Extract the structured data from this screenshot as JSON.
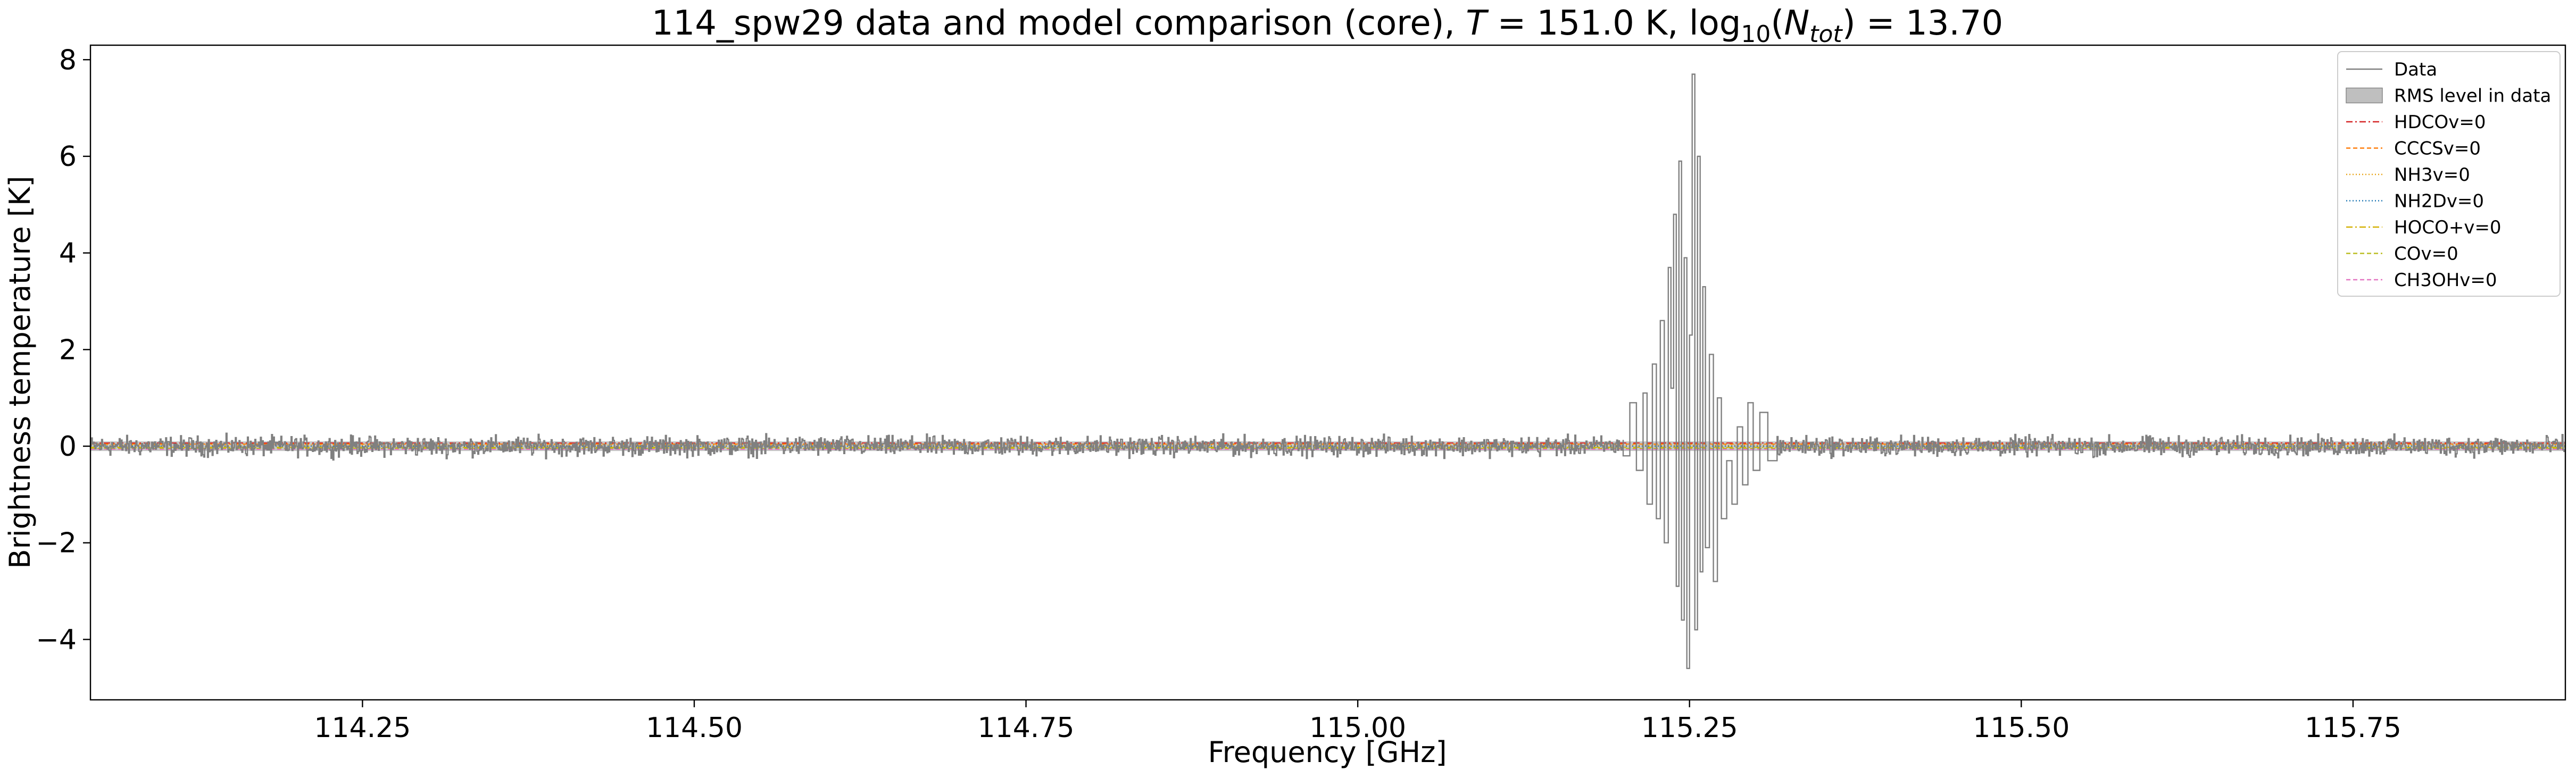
{
  "chart_data": {
    "type": "line",
    "title": {
      "prefix": "114_spw29 data and model comparison (core), ",
      "t_symbol": "T",
      "t_value": " = 151.0 K, log",
      "log_base": "10",
      "n_open": "(",
      "n_symbol": "N",
      "n_sub": "tot",
      "n_close": ") = 13.70"
    },
    "xlabel": "Frequency [GHz]",
    "ylabel": "Brightness temperature [K]",
    "xlim": [
      114.045,
      115.91
    ],
    "ylim": [
      -5.25,
      8.3
    ],
    "x_ticks": [
      114.25,
      114.5,
      114.75,
      115.0,
      115.25,
      115.5,
      115.75
    ],
    "x_tick_labels": [
      "114.25",
      "114.50",
      "114.75",
      "115.00",
      "115.25",
      "115.50",
      "115.75"
    ],
    "y_ticks": [
      -4,
      -2,
      0,
      2,
      4,
      6,
      8
    ],
    "y_tick_labels": [
      "−4",
      "−2",
      "0",
      "2",
      "4",
      "6",
      "8"
    ],
    "grid": false,
    "legend_position": "top-right",
    "rms_band": {
      "label": "RMS level in data",
      "lower": -0.1,
      "upper": 0.1,
      "color": "#bfbfbf"
    },
    "data_series": {
      "name": "Data",
      "color": "#808080",
      "baseline_noise": 0.1,
      "feature_points": [
        [
          115.2,
          -0.2
        ],
        [
          115.205,
          0.9
        ],
        [
          115.21,
          -0.5
        ],
        [
          115.215,
          1.1
        ],
        [
          115.218,
          -1.2
        ],
        [
          115.222,
          1.7
        ],
        [
          115.225,
          -1.5
        ],
        [
          115.228,
          2.6
        ],
        [
          115.231,
          -2.0
        ],
        [
          115.234,
          3.7
        ],
        [
          115.236,
          1.2
        ],
        [
          115.238,
          4.8
        ],
        [
          115.24,
          -2.9
        ],
        [
          115.242,
          5.9
        ],
        [
          115.244,
          -3.6
        ],
        [
          115.246,
          3.9
        ],
        [
          115.248,
          -4.6
        ],
        [
          115.25,
          2.3
        ],
        [
          115.252,
          7.7
        ],
        [
          115.254,
          -3.8
        ],
        [
          115.256,
          6.0
        ],
        [
          115.258,
          -2.6
        ],
        [
          115.26,
          3.3
        ],
        [
          115.262,
          -2.1
        ],
        [
          115.265,
          1.9
        ],
        [
          115.268,
          -2.8
        ],
        [
          115.271,
          1.0
        ],
        [
          115.274,
          -1.5
        ],
        [
          115.278,
          -0.3
        ],
        [
          115.282,
          -1.2
        ],
        [
          115.286,
          0.4
        ],
        [
          115.29,
          -0.8
        ],
        [
          115.294,
          0.9
        ],
        [
          115.298,
          -0.5
        ],
        [
          115.303,
          0.7
        ],
        [
          115.309,
          -0.3
        ],
        [
          115.316,
          0.2
        ]
      ]
    },
    "model_series": [
      {
        "name": "HDCOv=0",
        "color": "#d62728",
        "dash": "12 5 3 5"
      },
      {
        "name": "CCCSv=0",
        "color": "#ff7f0e",
        "dash": "8 5"
      },
      {
        "name": "NH3v=0",
        "color": "#e8a317",
        "dash": "2 4"
      },
      {
        "name": "NH2Dv=0",
        "color": "#1f77b4",
        "dash": "2 4"
      },
      {
        "name": "HOCO+v=0",
        "color": "#d4b106",
        "dash": "12 5 3 5"
      },
      {
        "name": "COv=0",
        "color": "#bcbd22",
        "dash": "8 5"
      },
      {
        "name": "CH3OHv=0",
        "color": "#e377c2",
        "dash": "8 5"
      }
    ],
    "model_value": 0.0
  }
}
